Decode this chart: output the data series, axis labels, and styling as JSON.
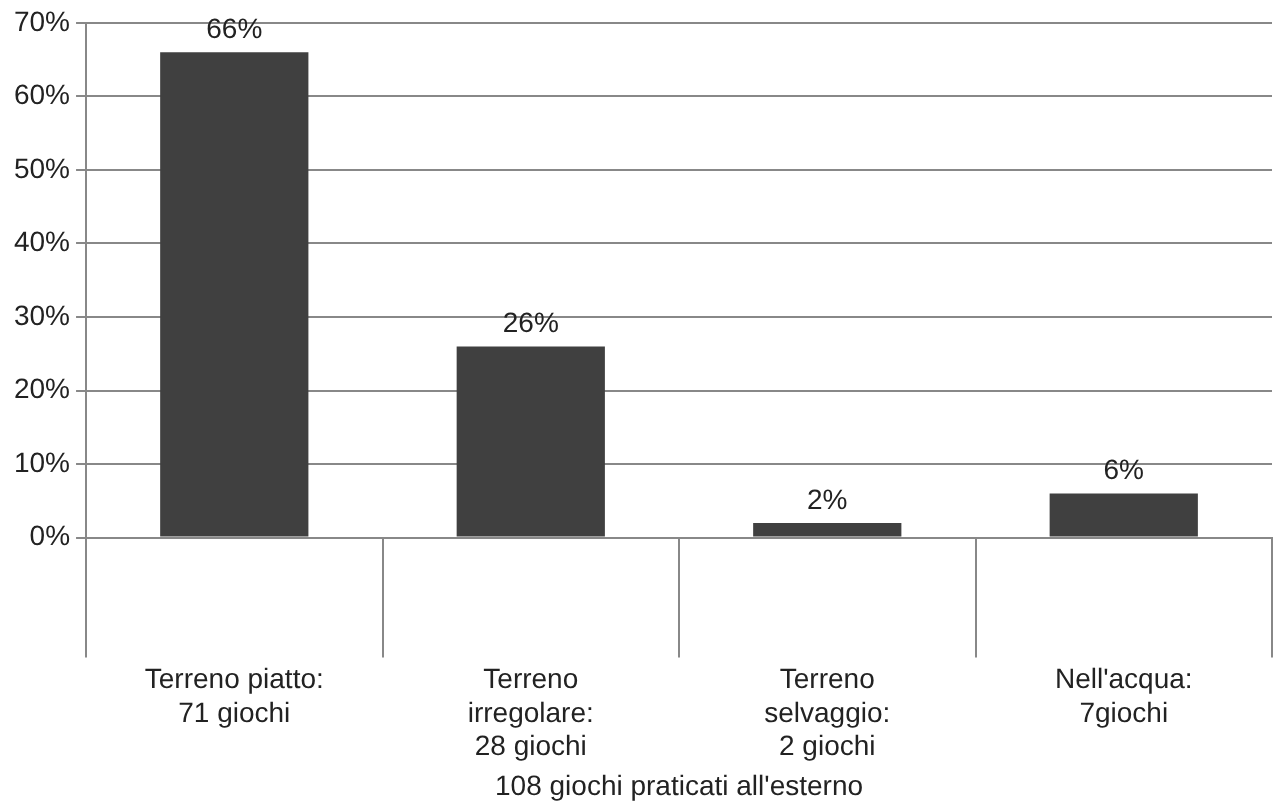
{
  "chart_data": {
    "type": "bar",
    "categories": [
      "Terreno piatto:\n71 giochi",
      "Terreno\nirregolare:\n28 giochi",
      "Terreno\nselvaggio:\n2 giochi",
      "Nell'acqua:\n7giochi"
    ],
    "values": [
      66,
      26,
      2,
      6
    ],
    "value_labels": [
      "66%",
      "26%",
      "2%",
      "6%"
    ],
    "color": "#404040",
    "xlabel": "108 giochi praticati all'esterno",
    "ylim": [
      0,
      70
    ],
    "yticks": [
      {
        "value": 0,
        "label": "0%"
      },
      {
        "value": 10,
        "label": "10%"
      },
      {
        "value": 20,
        "label": "20%"
      },
      {
        "value": 30,
        "label": "30%"
      },
      {
        "value": 40,
        "label": "40%"
      },
      {
        "value": 50,
        "label": "50%"
      },
      {
        "value": 60,
        "label": "60%"
      },
      {
        "value": 70,
        "label": "70%"
      }
    ],
    "grid": "y",
    "legend": false
  }
}
